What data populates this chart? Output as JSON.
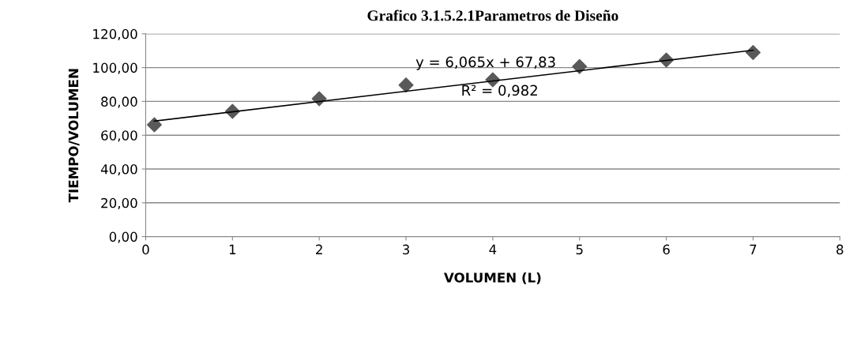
{
  "chart_data": {
    "type": "scatter",
    "title": "Grafico 3.1.5.2.1Parametros de Diseño",
    "xlabel": "VOLUMEN (L)",
    "ylabel": "TIEMPO/VOLUMEN",
    "series": [
      {
        "color": "#595959",
        "marker": "diamond",
        "x": [
          0.1,
          1,
          2,
          3,
          4,
          5,
          6,
          7
        ],
        "values": [
          66.2,
          74.1,
          81.6,
          89.7,
          92.8,
          100.6,
          104.5,
          108.9
        ]
      },
      {
        "type": "line",
        "color": "#000000",
        "marker": "none",
        "line_style": "solid",
        "x": [
          0.1,
          7
        ],
        "values": [
          68.4,
          110.3
        ]
      }
    ],
    "annotations": [
      "y = 6,065x + 67,83",
      "R² = 0,982"
    ],
    "xlim": [
      0,
      8
    ],
    "xticks": [
      0,
      1,
      2,
      3,
      4,
      5,
      6,
      7,
      8
    ],
    "ylim": [
      0,
      120
    ],
    "yticks": [
      {
        "value": 0,
        "label": "0,00"
      },
      {
        "value": 20,
        "label": "20,00"
      },
      {
        "value": 40,
        "label": "40,00"
      },
      {
        "value": 60,
        "label": "60,00"
      },
      {
        "value": 80,
        "label": "80,00"
      },
      {
        "value": 100,
        "label": "100,00"
      },
      {
        "value": 120,
        "label": "120,00"
      }
    ],
    "grid": "y",
    "legend": false
  }
}
